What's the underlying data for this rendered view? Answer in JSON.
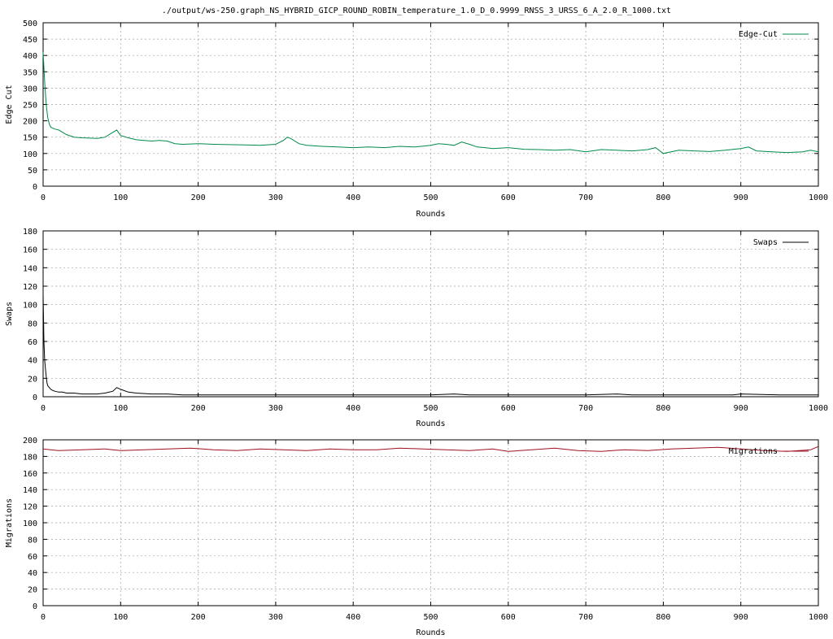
{
  "title": "./output/ws-250.graph_NS_HYBRID_GICP_ROUND_ROBIN_temperature_1.0_D_0.9999_RNSS_3_URSS_6_A_2.0_R_1000.txt",
  "chart_data": [
    {
      "type": "line",
      "xlabel": "Rounds",
      "ylabel": "Edge Cut",
      "xlim": [
        0,
        1000
      ],
      "ylim": [
        0,
        500
      ],
      "xticks": [
        0,
        100,
        200,
        300,
        400,
        500,
        600,
        700,
        800,
        900,
        1000
      ],
      "yticks": [
        0,
        50,
        100,
        150,
        200,
        250,
        300,
        350,
        400,
        450,
        500
      ],
      "grid": true,
      "legend_position": "top-right",
      "series": [
        {
          "name": "Edge-Cut",
          "color": "#008b4a",
          "x": [
            0,
            2,
            4,
            6,
            8,
            10,
            15,
            20,
            25,
            30,
            40,
            50,
            60,
            70,
            80,
            90,
            95,
            100,
            110,
            120,
            130,
            140,
            150,
            160,
            170,
            180,
            200,
            220,
            240,
            260,
            280,
            300,
            310,
            315,
            320,
            330,
            340,
            360,
            380,
            400,
            420,
            440,
            460,
            480,
            500,
            510,
            520,
            530,
            540,
            550,
            560,
            570,
            580,
            600,
            620,
            640,
            660,
            680,
            700,
            720,
            740,
            760,
            780,
            790,
            800,
            820,
            840,
            860,
            880,
            900,
            910,
            920,
            940,
            960,
            980,
            990,
            1000
          ],
          "y": [
            410,
            320,
            250,
            210,
            190,
            180,
            175,
            172,
            165,
            158,
            150,
            148,
            147,
            146,
            150,
            165,
            172,
            155,
            148,
            142,
            140,
            138,
            140,
            138,
            130,
            128,
            130,
            128,
            127,
            126,
            125,
            128,
            140,
            150,
            145,
            130,
            125,
            122,
            120,
            118,
            120,
            118,
            122,
            120,
            125,
            130,
            128,
            125,
            135,
            128,
            120,
            118,
            115,
            118,
            113,
            112,
            110,
            112,
            105,
            112,
            110,
            108,
            112,
            118,
            100,
            110,
            108,
            106,
            110,
            115,
            120,
            108,
            105,
            103,
            105,
            110,
            105
          ]
        }
      ]
    },
    {
      "type": "line",
      "xlabel": "Rounds",
      "ylabel": "Swaps",
      "xlim": [
        0,
        1000
      ],
      "ylim": [
        0,
        180
      ],
      "xticks": [
        0,
        100,
        200,
        300,
        400,
        500,
        600,
        700,
        800,
        900,
        1000
      ],
      "yticks": [
        0,
        20,
        40,
        60,
        80,
        100,
        120,
        140,
        160,
        180
      ],
      "grid": true,
      "legend_position": "top-right",
      "series": [
        {
          "name": "Swaps",
          "color": "#000000",
          "x": [
            0,
            1,
            2,
            3,
            4,
            5,
            6,
            8,
            10,
            12,
            15,
            20,
            25,
            30,
            40,
            50,
            60,
            70,
            80,
            90,
            95,
            100,
            110,
            120,
            140,
            160,
            180,
            200,
            250,
            300,
            350,
            400,
            450,
            500,
            530,
            550,
            600,
            650,
            700,
            740,
            760,
            800,
            850,
            890,
            900,
            950,
            1000
          ],
          "y": [
            110,
            60,
            40,
            30,
            22,
            15,
            12,
            10,
            8,
            7,
            6,
            5,
            5,
            4,
            4,
            3,
            3,
            3,
            4,
            6,
            10,
            8,
            5,
            4,
            3,
            3,
            2,
            2,
            2,
            2,
            2,
            2,
            2,
            2,
            3,
            2,
            2,
            2,
            2,
            3,
            2,
            2,
            2,
            2,
            3,
            2,
            2
          ]
        }
      ]
    },
    {
      "type": "line",
      "xlabel": "Rounds",
      "ylabel": "Migrations",
      "xlim": [
        0,
        1000
      ],
      "ylim": [
        0,
        200
      ],
      "xticks": [
        0,
        100,
        200,
        300,
        400,
        500,
        600,
        700,
        800,
        900,
        1000
      ],
      "yticks": [
        0,
        20,
        40,
        60,
        80,
        100,
        120,
        140,
        160,
        180,
        200
      ],
      "grid": true,
      "legend_position": "top-right",
      "series": [
        {
          "name": "Migrations",
          "color": "#a01020",
          "x": [
            0,
            20,
            50,
            80,
            100,
            130,
            160,
            190,
            220,
            250,
            280,
            310,
            340,
            370,
            400,
            430,
            460,
            490,
            520,
            550,
            580,
            600,
            630,
            660,
            690,
            720,
            750,
            780,
            810,
            840,
            870,
            900,
            930,
            960,
            990,
            1000
          ],
          "y": [
            189,
            187,
            188,
            189,
            187,
            188,
            189,
            190,
            188,
            187,
            189,
            188,
            187,
            189,
            188,
            188,
            190,
            189,
            188,
            187,
            189,
            186,
            188,
            190,
            187,
            186,
            188,
            187,
            189,
            190,
            191,
            189,
            187,
            186,
            188,
            192
          ]
        }
      ]
    }
  ]
}
